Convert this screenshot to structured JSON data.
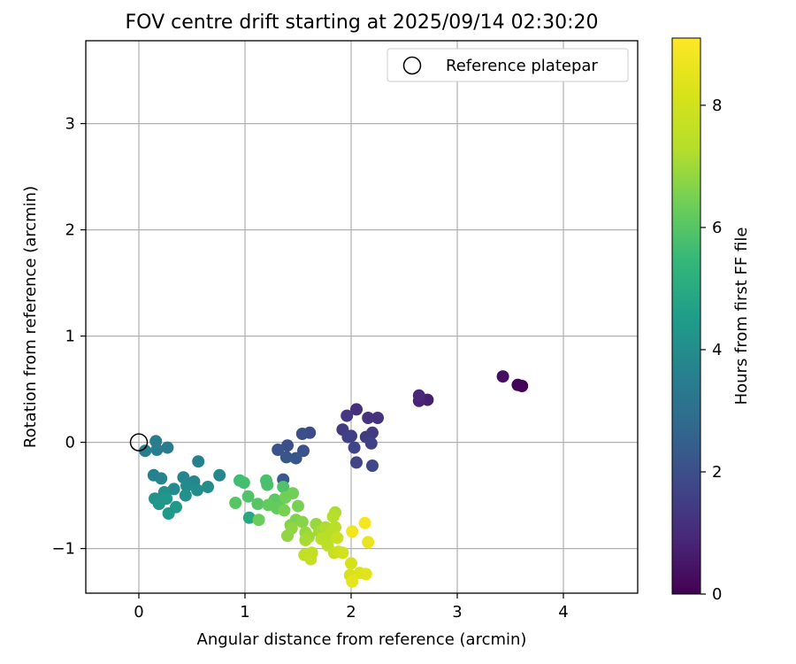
{
  "chart_data": {
    "type": "scatter",
    "title": "FOV centre drift starting at 2025/09/14 02:30:20",
    "xlabel": "Angular distance from reference (arcmin)",
    "ylabel": "Rotation from reference (arcmin)",
    "xlim": [
      -0.5,
      4.7
    ],
    "ylim": [
      -1.42,
      3.78
    ],
    "xticks": [
      0,
      1,
      2,
      3,
      4
    ],
    "xtick_labels": [
      "0",
      "1",
      "2",
      "3",
      "4"
    ],
    "yticks": [
      -1,
      0,
      1,
      2,
      3
    ],
    "ytick_labels": [
      "−1",
      "0",
      "1",
      "2",
      "3"
    ],
    "grid": true,
    "legend": {
      "placement": "top-right",
      "entries": [
        "Reference platepar"
      ]
    },
    "reference_point": {
      "x": 0,
      "y": 0
    },
    "colorbar": {
      "label": "Hours from first FF file",
      "range": [
        0,
        9.1
      ],
      "ticks": [
        0,
        2,
        4,
        6,
        8
      ],
      "tick_labels": [
        "0",
        "2",
        "4",
        "6",
        "8"
      ],
      "colormap": "viridis"
    },
    "points": [
      [
        3.61,
        0.53,
        0.0
      ],
      [
        3.57,
        0.54,
        0.1
      ],
      [
        3.43,
        0.62,
        0.3
      ],
      [
        2.72,
        0.4,
        0.7
      ],
      [
        2.64,
        0.39,
        0.8
      ],
      [
        2.64,
        0.44,
        0.9
      ],
      [
        2.05,
        0.31,
        1.1
      ],
      [
        2.25,
        0.23,
        1.2
      ],
      [
        2.16,
        0.23,
        1.2
      ],
      [
        1.96,
        0.25,
        1.3
      ],
      [
        2.2,
        0.09,
        1.4
      ],
      [
        1.92,
        0.12,
        1.4
      ],
      [
        2.14,
        0.05,
        1.5
      ],
      [
        2.0,
        0.06,
        1.5
      ],
      [
        1.97,
        0.05,
        1.6
      ],
      [
        2.19,
        -0.01,
        1.6
      ],
      [
        2.03,
        -0.05,
        1.7
      ],
      [
        2.05,
        -0.19,
        1.7
      ],
      [
        2.2,
        -0.22,
        1.8
      ],
      [
        1.61,
        0.09,
        1.9
      ],
      [
        1.54,
        0.08,
        2.0
      ],
      [
        1.4,
        -0.03,
        2.0
      ],
      [
        1.31,
        -0.07,
        2.1
      ],
      [
        1.55,
        -0.08,
        2.1
      ],
      [
        1.39,
        -0.14,
        2.2
      ],
      [
        1.48,
        -0.15,
        2.2
      ],
      [
        1.36,
        -0.35,
        2.3
      ],
      [
        0.16,
        0.01,
        3.4
      ],
      [
        0.27,
        -0.05,
        3.4
      ],
      [
        0.06,
        -0.08,
        3.5
      ],
      [
        0.17,
        -0.07,
        3.5
      ],
      [
        0.56,
        -0.18,
        3.6
      ],
      [
        0.14,
        -0.31,
        3.6
      ],
      [
        0.21,
        -0.34,
        3.7
      ],
      [
        0.42,
        -0.33,
        3.7
      ],
      [
        0.76,
        -0.31,
        3.8
      ],
      [
        0.52,
        -0.37,
        3.8
      ],
      [
        0.45,
        -0.41,
        3.9
      ],
      [
        0.33,
        -0.44,
        3.9
      ],
      [
        0.65,
        -0.42,
        4.0
      ],
      [
        0.55,
        -0.45,
        4.0
      ],
      [
        0.24,
        -0.47,
        4.1
      ],
      [
        0.44,
        -0.5,
        4.1
      ],
      [
        0.22,
        -0.52,
        4.2
      ],
      [
        0.15,
        -0.53,
        4.2
      ],
      [
        0.26,
        -0.53,
        4.3
      ],
      [
        0.19,
        -0.58,
        4.3
      ],
      [
        0.35,
        -0.61,
        4.4
      ],
      [
        0.28,
        -0.67,
        4.4
      ],
      [
        1.04,
        -0.71,
        4.9
      ],
      [
        0.95,
        -0.36,
        5.6
      ],
      [
        0.99,
        -0.38,
        5.7
      ],
      [
        1.2,
        -0.36,
        5.8
      ],
      [
        1.21,
        -0.4,
        5.8
      ],
      [
        1.36,
        -0.42,
        5.9
      ],
      [
        1.03,
        -0.51,
        5.9
      ],
      [
        0.91,
        -0.57,
        6.0
      ],
      [
        1.12,
        -0.58,
        6.0
      ],
      [
        1.28,
        -0.54,
        6.1
      ],
      [
        1.32,
        -0.59,
        6.1
      ],
      [
        1.22,
        -0.59,
        6.2
      ],
      [
        1.3,
        -0.62,
        6.2
      ],
      [
        1.13,
        -0.73,
        6.3
      ],
      [
        1.45,
        -0.48,
        6.4
      ],
      [
        1.38,
        -0.52,
        6.4
      ],
      [
        1.5,
        -0.6,
        6.5
      ],
      [
        1.37,
        -0.64,
        6.5
      ],
      [
        1.48,
        -0.73,
        6.6
      ],
      [
        1.43,
        -0.78,
        6.6
      ],
      [
        1.54,
        -0.75,
        6.7
      ],
      [
        1.44,
        -0.81,
        6.8
      ],
      [
        1.4,
        -0.88,
        6.8
      ],
      [
        1.57,
        -0.85,
        6.9
      ],
      [
        1.67,
        -0.77,
        6.9
      ],
      [
        1.6,
        -0.89,
        7.0
      ],
      [
        1.7,
        -0.84,
        7.0
      ],
      [
        1.57,
        -0.92,
        7.1
      ],
      [
        1.73,
        -0.83,
        7.1
      ],
      [
        1.76,
        -0.8,
        7.2
      ],
      [
        1.85,
        -0.66,
        7.2
      ],
      [
        1.83,
        -0.7,
        7.3
      ],
      [
        1.8,
        -0.87,
        7.3
      ],
      [
        1.85,
        -0.8,
        7.4
      ],
      [
        1.72,
        -0.91,
        7.4
      ],
      [
        1.78,
        -0.97,
        7.5
      ],
      [
        1.56,
        -1.06,
        7.6
      ],
      [
        1.63,
        -1.04,
        7.6
      ],
      [
        1.62,
        -1.1,
        7.7
      ],
      [
        1.84,
        -1.04,
        7.7
      ],
      [
        1.87,
        -0.9,
        7.8
      ],
      [
        1.88,
        -1.03,
        7.9
      ],
      [
        1.92,
        -1.04,
        8.0
      ],
      [
        2.0,
        -1.14,
        8.1
      ],
      [
        1.99,
        -1.25,
        8.2
      ],
      [
        2.08,
        -1.23,
        8.3
      ],
      [
        2.14,
        -1.24,
        8.4
      ],
      [
        2.01,
        -1.31,
        8.5
      ],
      [
        2.16,
        -0.94,
        8.6
      ],
      [
        2.01,
        -0.84,
        8.8
      ],
      [
        2.13,
        -0.76,
        8.9
      ]
    ]
  }
}
